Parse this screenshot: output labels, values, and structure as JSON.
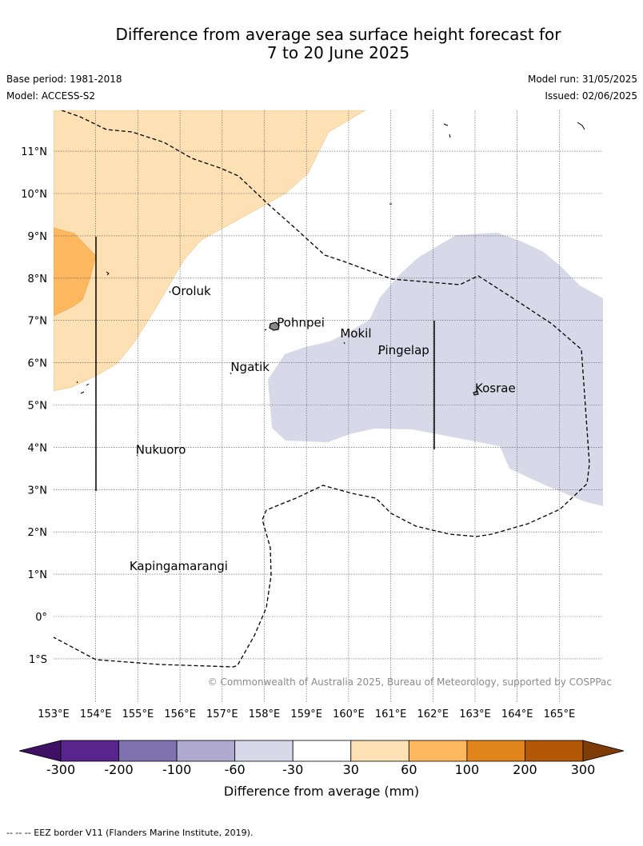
{
  "title_line1": "Difference from average sea surface height forecast for",
  "title_line2": "7 to 20 June 2025",
  "base_period": "Base period: 1981-2018",
  "model": "Model: ACCESS-S2",
  "model_run": "Model run: 31/05/2025",
  "issued": "Issued: 02/06/2025",
  "copyright": "© Commonwealth of Australia 2025, Bureau of Meteorology, supported by COSPPac",
  "map": {
    "lon_range": [
      153,
      166
    ],
    "lat_range": [
      -2,
      12
    ],
    "lon_ticks": [
      "153°E",
      "154°E",
      "155°E",
      "156°E",
      "157°E",
      "158°E",
      "159°E",
      "160°E",
      "161°E",
      "162°E",
      "163°E",
      "164°E",
      "165°E"
    ],
    "lat_ticks": [
      "11°N",
      "10°N",
      "9°N",
      "8°N",
      "7°N",
      "6°N",
      "5°N",
      "4°N",
      "3°N",
      "2°N",
      "1°N",
      "0°",
      "1°S"
    ],
    "places": [
      {
        "name": "Oroluk",
        "lon": 155.8,
        "lat": 7.6
      },
      {
        "name": "Pohnpei",
        "lon": 158.3,
        "lat": 6.85
      },
      {
        "name": "Mokil",
        "lon": 159.8,
        "lat": 6.6
      },
      {
        "name": "Pingelap",
        "lon": 160.7,
        "lat": 6.2
      },
      {
        "name": "Ngatik",
        "lon": 157.2,
        "lat": 5.8
      },
      {
        "name": "Kosrae",
        "lon": 163.0,
        "lat": 5.3
      },
      {
        "name": "Nukuoro",
        "lon": 154.95,
        "lat": 3.85
      },
      {
        "name": "Kapingamarangi",
        "lon": 154.8,
        "lat": 1.1
      }
    ]
  },
  "colorbar": {
    "tick_labels": [
      "-300",
      "-200",
      "-100",
      "-60",
      "-30",
      "30",
      "60",
      "100",
      "200",
      "300"
    ],
    "colors": [
      "#3f1164",
      "#57258c",
      "#7f71ae",
      "#afa8cf",
      "#d8d8e9",
      "#ffffff",
      "#fde0b4",
      "#fcb75f",
      "#e0841b",
      "#b35806",
      "#7f3b08"
    ],
    "label": "Difference from average (mm)"
  },
  "footer": "-- -- -- EEZ border V11 (Flanders Marine Institute, 2019)."
}
